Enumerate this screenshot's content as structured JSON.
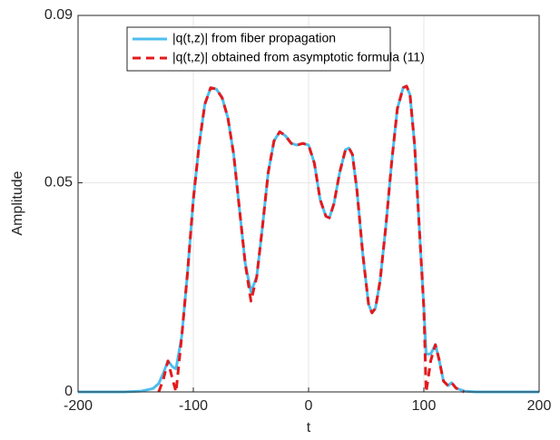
{
  "chart_data": {
    "type": "line",
    "x_label": "t",
    "y_label": "Amplitude",
    "x": [
      -200,
      -180,
      -160,
      -145,
      -135,
      -130,
      -126,
      -122,
      -118,
      -115,
      -110,
      -105,
      -100,
      -95,
      -90,
      -85,
      -80,
      -75,
      -70,
      -65,
      -60,
      -55,
      -50,
      -45,
      -40,
      -35,
      -30,
      -25,
      -20,
      -15,
      -10,
      -5,
      0,
      5,
      10,
      15,
      18,
      22,
      27,
      32,
      35,
      38,
      42,
      47,
      52,
      55,
      58,
      62,
      67,
      72,
      77,
      82,
      85,
      88,
      92,
      96,
      100,
      102,
      106,
      110,
      113,
      117,
      121,
      124,
      128,
      135,
      145,
      160,
      180,
      200
    ],
    "series": [
      {
        "name": "|q(t,z)| from fiber propagation",
        "color": "#4dbeee",
        "dash": false,
        "values": [
          0,
          0,
          0,
          0.0002,
          0.0008,
          0.002,
          0.0045,
          0.0074,
          0.006,
          0.0055,
          0.0134,
          0.0286,
          0.046,
          0.059,
          0.0688,
          0.0727,
          0.0724,
          0.0703,
          0.0655,
          0.0568,
          0.0438,
          0.0308,
          0.0239,
          0.0275,
          0.0395,
          0.0525,
          0.06,
          0.0622,
          0.0612,
          0.0594,
          0.059,
          0.0594,
          0.059,
          0.0547,
          0.046,
          0.042,
          0.0416,
          0.045,
          0.0525,
          0.0579,
          0.0583,
          0.0568,
          0.0481,
          0.033,
          0.021,
          0.0189,
          0.02,
          0.0265,
          0.0395,
          0.0547,
          0.0677,
          0.0727,
          0.0731,
          0.071,
          0.059,
          0.0395,
          0.02,
          0.009,
          0.0091,
          0.0113,
          0.008,
          0.0026,
          0.0015,
          0.0022,
          0.0009,
          0.0002,
          0,
          0,
          0,
          0
        ]
      },
      {
        "name": "|q(t,z)| obtained from asymptotic formula (11)",
        "color": "#e31a1c",
        "dash": true,
        "values": [
          null,
          null,
          null,
          null,
          null,
          0,
          0.003,
          0.0074,
          0.003,
          0,
          0.0134,
          0.0286,
          0.046,
          0.059,
          0.0688,
          0.0727,
          0.0724,
          0.0703,
          0.0655,
          0.0568,
          0.0438,
          0.0308,
          0.0217,
          0.0275,
          0.0395,
          0.0525,
          0.06,
          0.0622,
          0.0612,
          0.0594,
          0.059,
          0.0594,
          0.059,
          0.0547,
          0.046,
          0.042,
          0.0416,
          0.045,
          0.0525,
          0.0579,
          0.0583,
          0.0568,
          0.0481,
          0.033,
          0.021,
          0.0189,
          0.02,
          0.0265,
          0.0395,
          0.0547,
          0.0677,
          0.0727,
          0.0731,
          0.071,
          0.059,
          0.0395,
          0.02,
          0,
          0.0075,
          0.0113,
          0.008,
          0.0026,
          0.0015,
          0.0022,
          0.0009,
          0,
          null,
          null,
          null,
          null
        ]
      }
    ],
    "xlim": [
      -200,
      200
    ],
    "xticks": [
      -200,
      -100,
      0,
      100,
      200
    ],
    "ylim": [
      0,
      0.09
    ],
    "yticks": [
      0,
      0.05,
      0.09
    ],
    "grid": true,
    "legend": "top"
  }
}
